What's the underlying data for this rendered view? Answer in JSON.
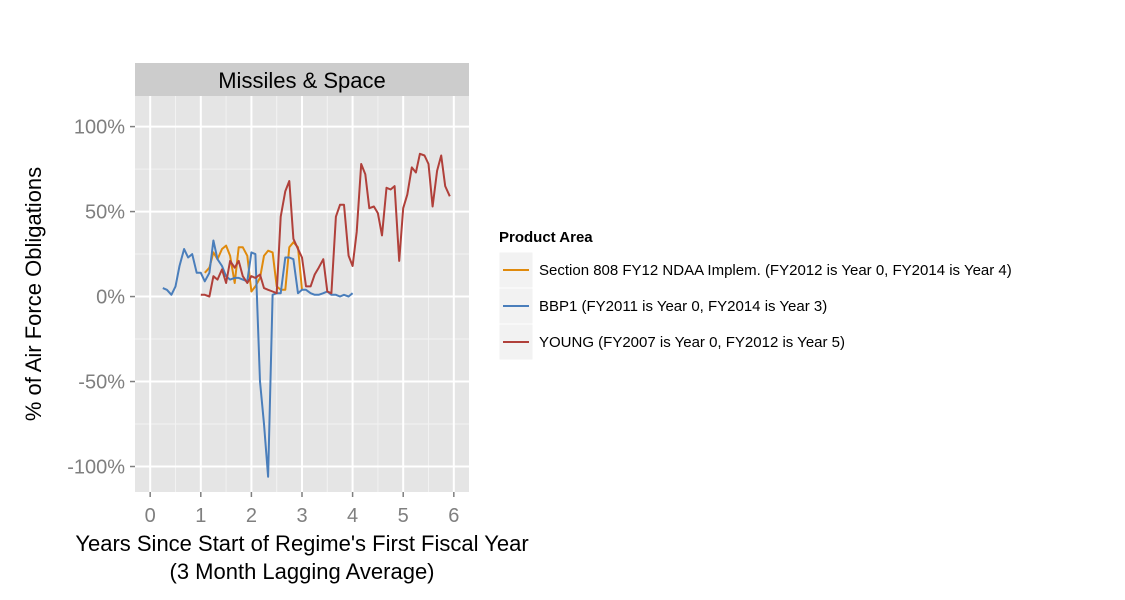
{
  "chart_data": {
    "type": "line",
    "facet_title": "Missiles & Space",
    "xlabel": "Years Since Start of Regime's First Fiscal Year",
    "xlabel_line2": "(3 Month Lagging Average)",
    "ylabel": "% of Air Force Obligations",
    "xlim": [
      -0.3,
      6.3
    ],
    "ylim": [
      -115,
      118
    ],
    "x_ticks": [
      0,
      1,
      2,
      3,
      4,
      5,
      6
    ],
    "x_tick_labels": [
      "0",
      "1",
      "2",
      "3",
      "4",
      "5",
      "6"
    ],
    "y_ticks": [
      100,
      50,
      0,
      -50,
      -100
    ],
    "y_tick_labels": [
      "100%",
      "50%",
      "0%",
      "-50%",
      "-100%"
    ],
    "grid": true,
    "legend_title": "Product Area",
    "legend_position": "right",
    "series": [
      {
        "name": "Section 808 FY12 NDAA Implem. (FY2012 is Year 0, FY2014 is Year 4)",
        "color": "#e08a0c",
        "points": [
          [
            1.08,
            14
          ],
          [
            1.17,
            17
          ],
          [
            1.25,
            26
          ],
          [
            1.33,
            22
          ],
          [
            1.42,
            28
          ],
          [
            1.5,
            30
          ],
          [
            1.58,
            24
          ],
          [
            1.67,
            8
          ],
          [
            1.75,
            29
          ],
          [
            1.83,
            29
          ],
          [
            1.92,
            24
          ],
          [
            2.0,
            3
          ],
          [
            2.08,
            6
          ],
          [
            2.17,
            11
          ],
          [
            2.25,
            24
          ],
          [
            2.33,
            27
          ],
          [
            2.42,
            26
          ],
          [
            2.5,
            6
          ],
          [
            2.58,
            4
          ],
          [
            2.67,
            4
          ],
          [
            2.75,
            29
          ],
          [
            2.83,
            32
          ],
          [
            2.92,
            29
          ],
          [
            3.0,
            4
          ]
        ]
      },
      {
        "name": "BBP1 (FY2011 is Year 0, FY2014 is Year 3)",
        "color": "#4a7ebb",
        "points": [
          [
            0.25,
            5
          ],
          [
            0.33,
            4
          ],
          [
            0.42,
            1
          ],
          [
            0.5,
            6
          ],
          [
            0.58,
            18
          ],
          [
            0.67,
            28
          ],
          [
            0.75,
            23
          ],
          [
            0.83,
            25
          ],
          [
            0.92,
            14
          ],
          [
            1.0,
            14
          ],
          [
            1.08,
            9
          ],
          [
            1.17,
            14
          ],
          [
            1.25,
            33
          ],
          [
            1.33,
            22
          ],
          [
            1.42,
            18
          ],
          [
            1.5,
            12
          ],
          [
            1.58,
            10
          ],
          [
            1.67,
            11
          ],
          [
            1.75,
            11
          ],
          [
            1.83,
            10
          ],
          [
            1.92,
            9
          ],
          [
            2.0,
            26
          ],
          [
            2.08,
            25
          ],
          [
            2.17,
            -50
          ],
          [
            2.25,
            -75
          ],
          [
            2.33,
            -106
          ],
          [
            2.42,
            1
          ],
          [
            2.5,
            2
          ],
          [
            2.58,
            2
          ],
          [
            2.67,
            23
          ],
          [
            2.75,
            23
          ],
          [
            2.83,
            22
          ],
          [
            2.92,
            2
          ],
          [
            3.0,
            4
          ],
          [
            3.08,
            4
          ],
          [
            3.17,
            2
          ],
          [
            3.25,
            1
          ],
          [
            3.33,
            1
          ],
          [
            3.42,
            2
          ],
          [
            3.5,
            3
          ],
          [
            3.58,
            1
          ],
          [
            3.67,
            1
          ],
          [
            3.75,
            0
          ],
          [
            3.83,
            1
          ],
          [
            3.92,
            0
          ],
          [
            4.0,
            2
          ]
        ]
      },
      {
        "name": "YOUNG (FY2007 is Year 0, FY2012 is Year 5)",
        "color": "#b0403a",
        "points": [
          [
            1.0,
            1
          ],
          [
            1.08,
            1
          ],
          [
            1.17,
            0
          ],
          [
            1.25,
            12
          ],
          [
            1.33,
            10
          ],
          [
            1.42,
            16
          ],
          [
            1.5,
            8
          ],
          [
            1.58,
            21
          ],
          [
            1.67,
            17
          ],
          [
            1.75,
            21
          ],
          [
            1.83,
            12
          ],
          [
            1.92,
            8
          ],
          [
            2.0,
            12
          ],
          [
            2.08,
            11
          ],
          [
            2.17,
            13
          ],
          [
            2.25,
            5
          ],
          [
            2.33,
            4
          ],
          [
            2.42,
            3
          ],
          [
            2.5,
            2
          ],
          [
            2.58,
            47
          ],
          [
            2.67,
            62
          ],
          [
            2.75,
            68
          ],
          [
            2.83,
            34
          ],
          [
            2.92,
            28
          ],
          [
            3.0,
            23
          ],
          [
            3.08,
            6
          ],
          [
            3.17,
            6
          ],
          [
            3.25,
            13
          ],
          [
            3.33,
            17
          ],
          [
            3.42,
            22
          ],
          [
            3.5,
            3
          ],
          [
            3.58,
            2
          ],
          [
            3.67,
            47
          ],
          [
            3.75,
            54
          ],
          [
            3.83,
            54
          ],
          [
            3.92,
            24
          ],
          [
            4.0,
            18
          ],
          [
            4.08,
            38
          ],
          [
            4.17,
            78
          ],
          [
            4.25,
            72
          ],
          [
            4.33,
            52
          ],
          [
            4.42,
            53
          ],
          [
            4.5,
            49
          ],
          [
            4.58,
            36
          ],
          [
            4.67,
            64
          ],
          [
            4.75,
            63
          ],
          [
            4.83,
            65
          ],
          [
            4.92,
            21
          ],
          [
            5.0,
            52
          ],
          [
            5.08,
            60
          ],
          [
            5.17,
            76
          ],
          [
            5.25,
            73
          ],
          [
            5.33,
            84
          ],
          [
            5.42,
            83
          ],
          [
            5.5,
            78
          ],
          [
            5.58,
            53
          ],
          [
            5.67,
            74
          ],
          [
            5.75,
            83
          ],
          [
            5.83,
            65
          ],
          [
            5.92,
            59
          ]
        ]
      }
    ]
  }
}
